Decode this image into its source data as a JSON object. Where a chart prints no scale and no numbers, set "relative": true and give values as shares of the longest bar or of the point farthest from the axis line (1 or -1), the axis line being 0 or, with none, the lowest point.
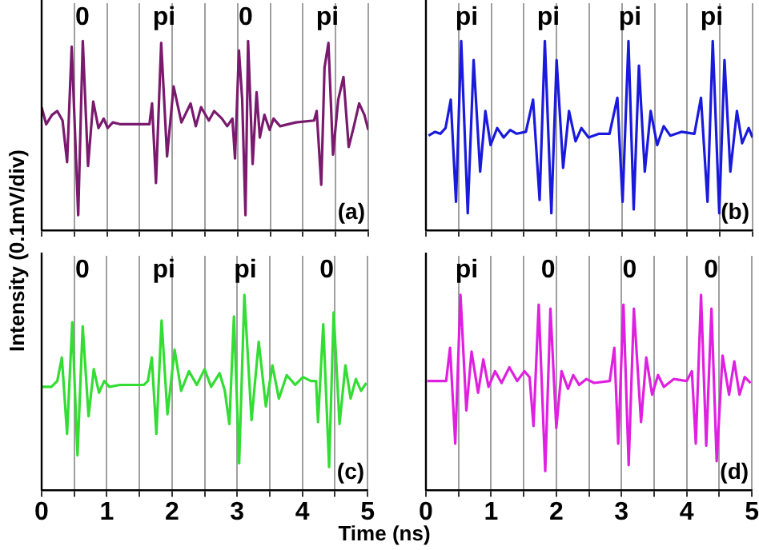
{
  "chart_data": [
    {
      "type": "line",
      "relative": true,
      "color": "#7a1a6e",
      "ylabel": "Intensity (0.1mV/div)",
      "tick_labels": false,
      "grid": "x",
      "xlim": [
        0,
        5
      ],
      "xticks": [
        0,
        {
          "value": 0.5,
          "label": null
        },
        1,
        {
          "value": 1.5,
          "label": null
        },
        2,
        {
          "value": 2.5,
          "label": null
        },
        3,
        {
          "value": 3.5,
          "label": null
        },
        4,
        {
          "value": 4.5,
          "label": null
        },
        5
      ],
      "annotations": [
        "0",
        "pi",
        "0",
        "pi",
        "(a)"
      ],
      "x": [
        0,
        0.07,
        0.16,
        0.24,
        0.32,
        0.39,
        0.46,
        0.56,
        0.63,
        0.71,
        0.79,
        0.87,
        0.95,
        1.01,
        1.09,
        1.21,
        1.65,
        1.69,
        1.75,
        1.83,
        1.92,
        2.02,
        2.14,
        2.28,
        2.36,
        2.44,
        2.56,
        2.64,
        2.76,
        2.84,
        2.92,
        2.96,
        3.02,
        3.07,
        3.12,
        3.16,
        3.23,
        3.29,
        3.34,
        3.41,
        3.49,
        3.55,
        3.65,
        3.89,
        4.17,
        4.21,
        4.28,
        4.33,
        4.39,
        4.46,
        4.54,
        4.62,
        4.7,
        4.78,
        4.86,
        4.94,
        5.0
      ],
      "values": [
        0.65,
        0.56,
        0.61,
        0.63,
        0.58,
        0.36,
        0.97,
        0.08,
        1.0,
        0.34,
        0.68,
        0.54,
        0.59,
        0.54,
        0.57,
        0.56,
        0.56,
        0.67,
        0.25,
        0.99,
        0.39,
        0.76,
        0.57,
        0.67,
        0.55,
        0.65,
        0.58,
        0.63,
        0.59,
        0.55,
        0.59,
        0.38,
        0.95,
        0.69,
        0.08,
        1.0,
        0.35,
        0.73,
        0.49,
        0.61,
        0.53,
        0.59,
        0.55,
        0.57,
        0.58,
        0.63,
        0.24,
        0.86,
        0.99,
        0.4,
        0.69,
        0.81,
        0.44,
        0.55,
        0.67,
        0.61,
        0.53
      ]
    },
    {
      "type": "line",
      "relative": true,
      "color": "#1a1adc",
      "tick_labels": false,
      "grid": "x",
      "xlim": [
        0,
        5
      ],
      "xticks": [
        0,
        {
          "value": 0.5,
          "label": null
        },
        1,
        {
          "value": 1.5,
          "label": null
        },
        2,
        {
          "value": 2.5,
          "label": null
        },
        3,
        {
          "value": 3.5,
          "label": null
        },
        4,
        {
          "value": 4.5,
          "label": null
        },
        5
      ],
      "annotations": [
        "pi",
        "pi",
        "pi",
        "pi",
        "(b)"
      ],
      "x": [
        0.04,
        0.14,
        0.22,
        0.3,
        0.38,
        0.46,
        0.54,
        0.64,
        0.73,
        0.83,
        0.91,
        0.99,
        1.09,
        1.19,
        1.29,
        1.39,
        1.53,
        1.64,
        1.74,
        1.82,
        1.92,
        2.0,
        2.1,
        2.19,
        2.29,
        2.38,
        2.49,
        2.65,
        2.81,
        2.93,
        3.01,
        3.1,
        3.18,
        3.26,
        3.35,
        3.44,
        3.54,
        3.64,
        3.74,
        3.91,
        4.11,
        4.21,
        4.31,
        4.39,
        4.49,
        4.57,
        4.66,
        4.76,
        4.84,
        4.94,
        5.0
      ],
      "values": [
        0.5,
        0.52,
        0.51,
        0.54,
        0.69,
        0.15,
        1.0,
        0.09,
        0.9,
        0.31,
        0.63,
        0.45,
        0.54,
        0.49,
        0.53,
        0.51,
        0.52,
        0.69,
        0.16,
        1.0,
        0.09,
        0.9,
        0.33,
        0.63,
        0.47,
        0.54,
        0.49,
        0.51,
        0.51,
        0.7,
        0.15,
        1.0,
        0.11,
        0.87,
        0.31,
        0.63,
        0.45,
        0.55,
        0.5,
        0.52,
        0.51,
        0.7,
        0.15,
        1.0,
        0.09,
        0.9,
        0.31,
        0.63,
        0.46,
        0.54,
        0.49
      ]
    },
    {
      "type": "line",
      "relative": true,
      "color": "#33dd33",
      "xlabel": "Time (ns)",
      "tick_labels": "x",
      "grid": "x",
      "xlim": [
        0,
        5
      ],
      "xticks": [
        0,
        {
          "value": 0.5,
          "label": null
        },
        1,
        {
          "value": 1.5,
          "label": null
        },
        2,
        {
          "value": 2.5,
          "label": null
        },
        3,
        {
          "value": 3.5,
          "label": null
        },
        4,
        {
          "value": 4.5,
          "label": null
        },
        5
      ],
      "annotations": [
        "0",
        "pi",
        "pi",
        "0",
        "(c)"
      ],
      "x": [
        0,
        0.15,
        0.24,
        0.31,
        0.39,
        0.47,
        0.55,
        0.63,
        0.72,
        0.8,
        0.88,
        0.96,
        1.04,
        1.2,
        1.57,
        1.63,
        1.69,
        1.76,
        1.84,
        1.93,
        2.04,
        2.14,
        2.26,
        2.38,
        2.5,
        2.6,
        2.73,
        2.81,
        2.88,
        2.95,
        3.03,
        3.11,
        3.22,
        3.33,
        3.44,
        3.54,
        3.64,
        3.76,
        3.89,
        4.01,
        4.13,
        4.21,
        4.24,
        4.32,
        4.41,
        4.48,
        4.57,
        4.66,
        4.74,
        4.82,
        4.9,
        4.98
      ],
      "values": [
        0.53,
        0.53,
        0.56,
        0.68,
        0.29,
        0.86,
        0.18,
        0.84,
        0.38,
        0.62,
        0.5,
        0.56,
        0.53,
        0.54,
        0.54,
        0.56,
        0.68,
        0.29,
        0.87,
        0.39,
        0.72,
        0.51,
        0.61,
        0.54,
        0.62,
        0.53,
        0.6,
        0.51,
        0.34,
        0.89,
        0.14,
        1.0,
        0.36,
        0.76,
        0.43,
        0.64,
        0.47,
        0.59,
        0.54,
        0.58,
        0.56,
        0.56,
        0.35,
        0.85,
        0.12,
        0.91,
        0.34,
        0.64,
        0.47,
        0.57,
        0.51,
        0.55
      ]
    },
    {
      "type": "line",
      "relative": true,
      "color": "#e020e0",
      "tick_labels": "x",
      "grid": "x",
      "xlim": [
        0,
        5
      ],
      "xticks": [
        0,
        {
          "value": 0.5,
          "label": null
        },
        1,
        {
          "value": 1.5,
          "label": null
        },
        2,
        {
          "value": 2.5,
          "label": null
        },
        3,
        {
          "value": 3.5,
          "label": null
        },
        4,
        {
          "value": 4.5,
          "label": null
        },
        5
      ],
      "annotations": [
        "pi",
        "0",
        "0",
        "0",
        "(d)"
      ],
      "x": [
        0.02,
        0.31,
        0.37,
        0.45,
        0.53,
        0.62,
        0.7,
        0.8,
        0.88,
        0.96,
        1.06,
        1.16,
        1.28,
        1.4,
        1.51,
        1.59,
        1.65,
        1.73,
        1.83,
        1.91,
        2.0,
        2.08,
        2.18,
        2.26,
        2.35,
        2.46,
        2.58,
        2.82,
        2.89,
        2.95,
        3.03,
        3.11,
        3.19,
        3.3,
        3.38,
        3.47,
        3.56,
        3.65,
        3.8,
        4.0,
        4.08,
        4.14,
        4.22,
        4.3,
        4.38,
        4.46,
        4.55,
        4.65,
        4.73,
        4.81,
        4.89,
        4.98
      ],
      "values": [
        0.56,
        0.56,
        0.73,
        0.24,
        1.0,
        0.41,
        0.71,
        0.5,
        0.67,
        0.53,
        0.61,
        0.55,
        0.63,
        0.56,
        0.61,
        0.58,
        0.33,
        0.95,
        0.1,
        0.93,
        0.32,
        0.61,
        0.52,
        0.59,
        0.54,
        0.57,
        0.55,
        0.56,
        0.73,
        0.24,
        0.95,
        0.13,
        0.93,
        0.35,
        0.68,
        0.49,
        0.59,
        0.53,
        0.57,
        0.56,
        0.61,
        0.24,
        1.0,
        0.23,
        0.93,
        0.15,
        0.69,
        0.49,
        0.66,
        0.49,
        0.58,
        0.55
      ]
    }
  ]
}
